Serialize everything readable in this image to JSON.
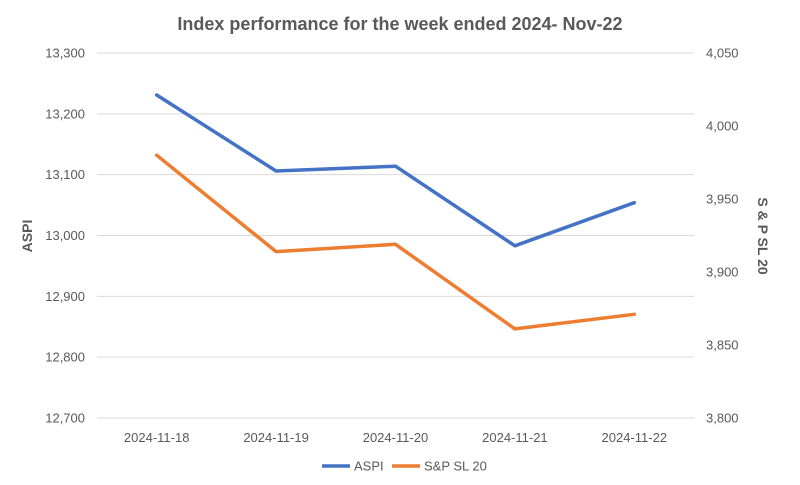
{
  "chart_data": {
    "type": "line",
    "title": "Index performance for the week ended 2024- Nov-22",
    "categories": [
      "2024-11-18",
      "2024-11-19",
      "2024-11-20",
      "2024-11-21",
      "2024-11-22"
    ],
    "y_left": {
      "label": "ASPI",
      "range": [
        12700,
        13300
      ],
      "ticks": [
        "12,700",
        "12,800",
        "12,900",
        "13,000",
        "13,100",
        "13,200",
        "13,300"
      ]
    },
    "y_right": {
      "label": "S & P SL 20",
      "range": [
        3800,
        4050
      ],
      "ticks": [
        "3,800",
        "3,850",
        "3,900",
        "3,950",
        "4,000",
        "4,050"
      ]
    },
    "series": [
      {
        "name": "ASPI",
        "axis": "left",
        "color": "#4472C4",
        "values": [
          13231,
          13106,
          13114,
          12983,
          13054
        ]
      },
      {
        "name": "S&P SL 20",
        "axis": "right",
        "color": "#ED7D31",
        "values": [
          3980,
          3914,
          3919,
          3861,
          3871
        ]
      }
    ],
    "grid": true,
    "legend": "bottom"
  }
}
